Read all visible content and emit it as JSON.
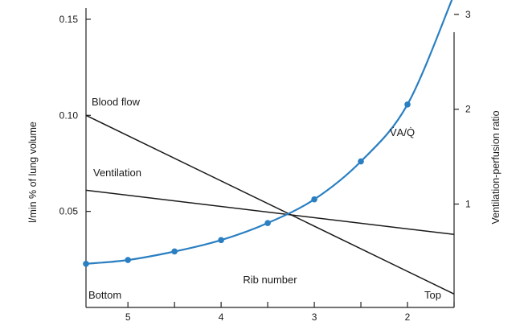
{
  "chart_data": {
    "type": "line",
    "xlabel": "Rib number",
    "x_end_labels": {
      "left": "Bottom",
      "right": "Top"
    },
    "x_ticks": [
      5,
      4,
      3,
      2
    ],
    "xlim": [
      5.45,
      1.5
    ],
    "ylabel": "l/min % of lung volume",
    "y_ticks": [
      {
        "value": 0.05,
        "label": "0.05"
      },
      {
        "value": 0.1,
        "label": "0.10"
      },
      {
        "value": 0.15,
        "label": "0.15"
      }
    ],
    "ylim": [
      0.0,
      0.155
    ],
    "y2label": "Ventilation-perfusion ratio",
    "y2_ticks": [
      {
        "value": 1,
        "label": "1"
      },
      {
        "value": 2,
        "label": "2"
      },
      {
        "value": 3,
        "label": "3"
      }
    ],
    "y2lim": [
      -0.09,
      3.05
    ],
    "grid": false,
    "series": [
      {
        "name": "Blood flow",
        "axis": "left",
        "color": "#1a1a1a",
        "x": [
          5.45,
          1.5
        ],
        "y": [
          0.1,
          0.007
        ]
      },
      {
        "name": "Ventilation",
        "axis": "left",
        "color": "#1a1a1a",
        "x": [
          5.45,
          1.5
        ],
        "y": [
          0.061,
          0.038
        ]
      },
      {
        "name": "V̇A/Q̇",
        "axis": "right",
        "color": "#2a7fc2",
        "markers": true,
        "x": [
          5.45,
          5.0,
          4.5,
          4.0,
          3.5,
          3.0,
          2.5,
          2.0,
          1.5
        ],
        "y": [
          0.37,
          0.41,
          0.5,
          0.62,
          0.8,
          1.05,
          1.45,
          2.05,
          3.21
        ]
      }
    ]
  }
}
